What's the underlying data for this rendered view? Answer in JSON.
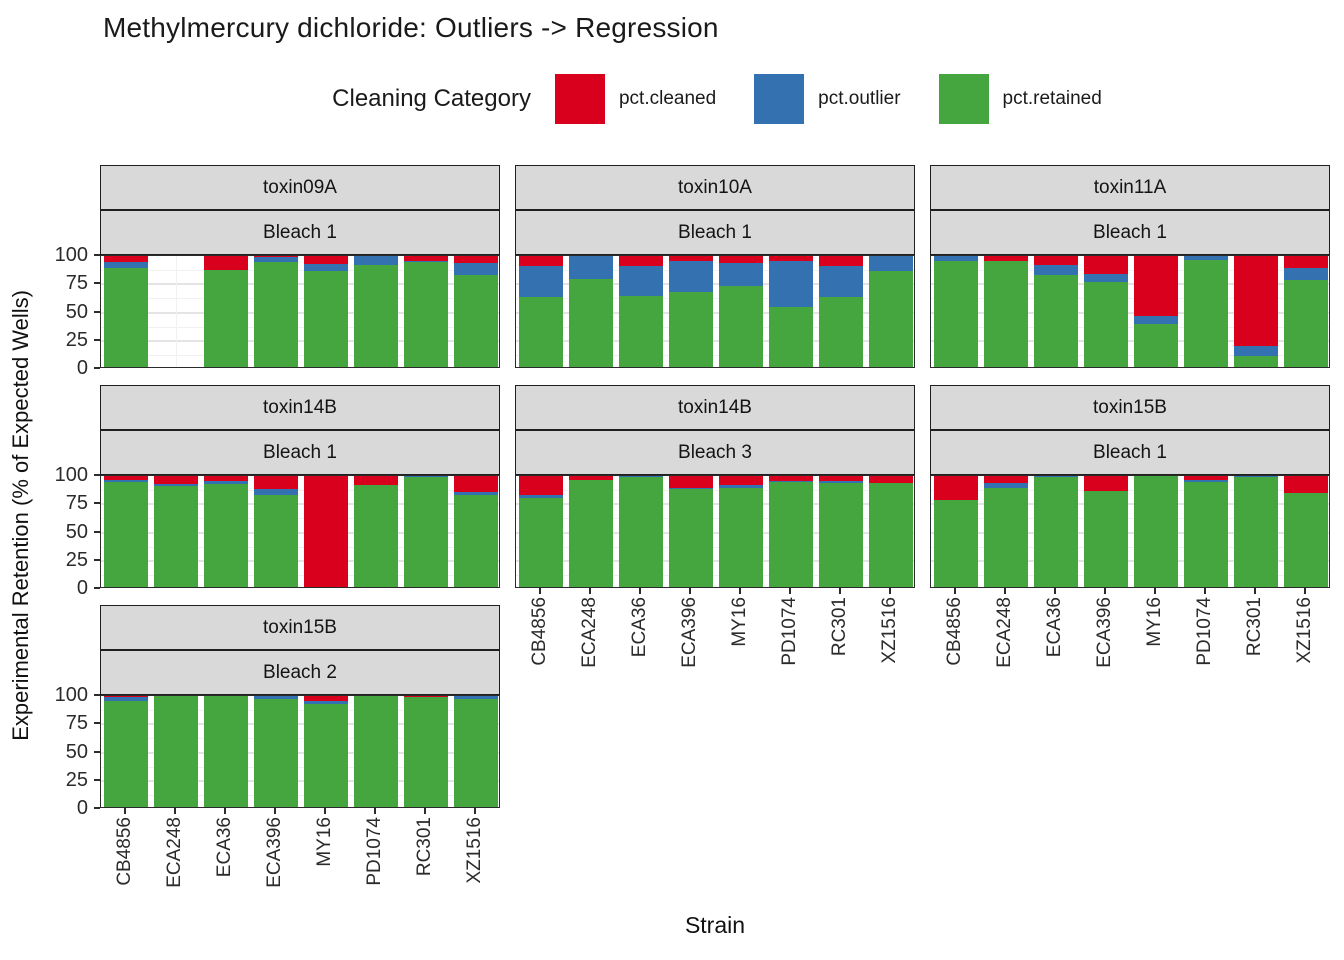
{
  "title": "Methylmercury dichloride: Outliers -> Regression",
  "legend": {
    "title": "Cleaning Category",
    "items": [
      {
        "label": "pct.cleaned",
        "color": "#d8001d"
      },
      {
        "label": "pct.outlier",
        "color": "#3371b0"
      },
      {
        "label": "pct.retained",
        "color": "#45a63f"
      }
    ]
  },
  "axes": {
    "y_title": "Experimental Retention (% of Expected Wells)",
    "x_title": "Strain",
    "y_ticks": [
      100,
      75,
      50,
      25,
      0
    ]
  },
  "chart_data": {
    "type": "bar",
    "stacked": true,
    "ylim": [
      0,
      100
    ],
    "grid": true,
    "legend_position": "top",
    "categories": [
      "CB4856",
      "ECA248",
      "ECA36",
      "ECA396",
      "MY16",
      "PD1074",
      "RC301",
      "XZ1516"
    ],
    "facets": [
      {
        "toxin": "toxin09A",
        "bleach": "Bleach 1",
        "row": 0,
        "col": 0,
        "series": [
          {
            "name": "pct.cleaned",
            "values": [
              7,
              null,
              14,
              3,
              9,
              2,
              6,
              8
            ]
          },
          {
            "name": "pct.outlier",
            "values": [
              5,
              null,
              0,
              4,
              6,
              8,
              1,
              11
            ]
          },
          {
            "name": "pct.retained",
            "values": [
              88,
              null,
              86,
              93,
              85,
              90,
              93,
              81
            ]
          }
        ]
      },
      {
        "toxin": "toxin10A",
        "bleach": "Bleach 1",
        "row": 0,
        "col": 1,
        "series": [
          {
            "name": "pct.cleaned",
            "values": [
              11,
              2,
              11,
              6,
              8,
              6,
              11,
              2
            ]
          },
          {
            "name": "pct.outlier",
            "values": [
              27,
              20,
              26,
              28,
              20,
              41,
              27,
              13
            ]
          },
          {
            "name": "pct.retained",
            "values": [
              62,
              78,
              63,
              66,
              72,
              53,
              62,
              85
            ]
          }
        ]
      },
      {
        "toxin": "toxin11A",
        "bleach": "Bleach 1",
        "row": 0,
        "col": 2,
        "series": [
          {
            "name": "pct.cleaned",
            "values": [
              0,
              6,
              10,
              18,
              55,
              0,
              81,
              12
            ]
          },
          {
            "name": "pct.outlier",
            "values": [
              6,
              0,
              9,
              7,
              7,
              5,
              9,
              11
            ]
          },
          {
            "name": "pct.retained",
            "values": [
              94,
              94,
              81,
              75,
              38,
              95,
              10,
              77
            ]
          }
        ]
      },
      {
        "toxin": "toxin14B",
        "bleach": "Bleach 1",
        "row": 1,
        "col": 0,
        "series": [
          {
            "name": "pct.cleaned",
            "values": [
              5,
              9,
              6,
              13,
              100,
              10,
              0,
              16
            ]
          },
          {
            "name": "pct.outlier",
            "values": [
              2,
              2,
              3,
              6,
              0,
              0,
              3,
              3
            ]
          },
          {
            "name": "pct.retained",
            "values": [
              93,
              89,
              91,
              81,
              0,
              90,
              97,
              81
            ]
          }
        ]
      },
      {
        "toxin": "toxin14B",
        "bleach": "Bleach 3",
        "row": 1,
        "col": 1,
        "series": [
          {
            "name": "pct.cleaned",
            "values": [
              19,
              5,
              0,
              12,
              10,
              6,
              6,
              8
            ]
          },
          {
            "name": "pct.outlier",
            "values": [
              2,
              0,
              3,
              1,
              2,
              1,
              2,
              0
            ]
          },
          {
            "name": "pct.retained",
            "values": [
              79,
              95,
              97,
              87,
              88,
              93,
              92,
              92
            ]
          }
        ]
      },
      {
        "toxin": "toxin15B",
        "bleach": "Bleach 1",
        "row": 1,
        "col": 2,
        "series": [
          {
            "name": "pct.cleaned",
            "values": [
              23,
              8,
              0,
              15,
              2,
              5,
              0,
              17
            ]
          },
          {
            "name": "pct.outlier",
            "values": [
              0,
              4,
              3,
              0,
              0,
              2,
              3,
              0
            ]
          },
          {
            "name": "pct.retained",
            "values": [
              77,
              88,
              97,
              85,
              98,
              93,
              97,
              83
            ]
          }
        ]
      },
      {
        "toxin": "toxin15B",
        "bleach": "Bleach 2",
        "row": 2,
        "col": 0,
        "series": [
          {
            "name": "pct.cleaned",
            "values": [
              3,
              0,
              2,
              2,
              6,
              0,
              3,
              0
            ]
          },
          {
            "name": "pct.outlier",
            "values": [
              3,
              2,
              0,
              2,
              3,
              0,
              0,
              4
            ]
          },
          {
            "name": "pct.retained",
            "values": [
              94,
              98,
              98,
              96,
              91,
              100,
              97,
              96
            ]
          }
        ]
      }
    ]
  }
}
